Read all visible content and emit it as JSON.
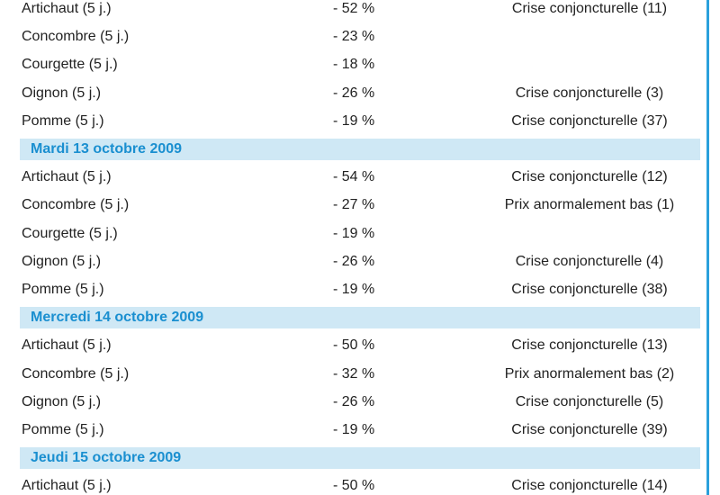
{
  "table": {
    "rows": [
      {
        "product": "Artichaut (5 j.)",
        "change": "- 52 %",
        "status": "Crise conjoncturelle (11)"
      },
      {
        "product": "Concombre (5 j.)",
        "change": "- 23 %"
      },
      {
        "product": "Courgette (5 j.)",
        "change": "- 18 %"
      },
      {
        "product": "Oignon (5 j.)",
        "change": "- 26 %",
        "status": "Crise conjoncturelle (3)"
      },
      {
        "product": "Pomme (5 j.)",
        "change": "- 19 %",
        "status": "Crise conjoncturelle (37)"
      }
    ],
    "sections": [
      {
        "title": "Mardi 13 octobre 2009",
        "rows": [
          {
            "product": "Artichaut (5 j.)",
            "change": "- 54 %",
            "status": "Crise conjoncturelle (12)"
          },
          {
            "product": "Concombre (5 j.)",
            "change": "- 27 %",
            "status": "Prix anormalement bas (1)"
          },
          {
            "product": "Courgette (5 j.)",
            "change": "- 19 %"
          },
          {
            "product": "Oignon (5 j.)",
            "change": "- 26 %",
            "status": "Crise conjoncturelle (4)"
          },
          {
            "product": "Pomme (5 j.)",
            "change": "- 19 %",
            "status": "Crise conjoncturelle (38)"
          }
        ]
      },
      {
        "title": "Mercredi 14 octobre 2009",
        "rows": [
          {
            "product": "Artichaut (5 j.)",
            "change": "- 50 %",
            "status": "Crise conjoncturelle (13)"
          },
          {
            "product": "Concombre (5 j.)",
            "change": "- 32 %",
            "status": "Prix anormalement bas (2)"
          },
          {
            "product": "Oignon (5 j.)",
            "change": "- 26 %",
            "status": "Crise conjoncturelle (5)"
          },
          {
            "product": "Pomme (5 j.)",
            "change": "- 19 %",
            "status": "Crise conjoncturelle (39)"
          }
        ]
      },
      {
        "title": "Jeudi 15 octobre 2009",
        "rows": [
          {
            "product": "Artichaut (5 j.)",
            "change": "- 50 %",
            "status": "Crise conjoncturelle (14)"
          }
        ]
      }
    ]
  }
}
